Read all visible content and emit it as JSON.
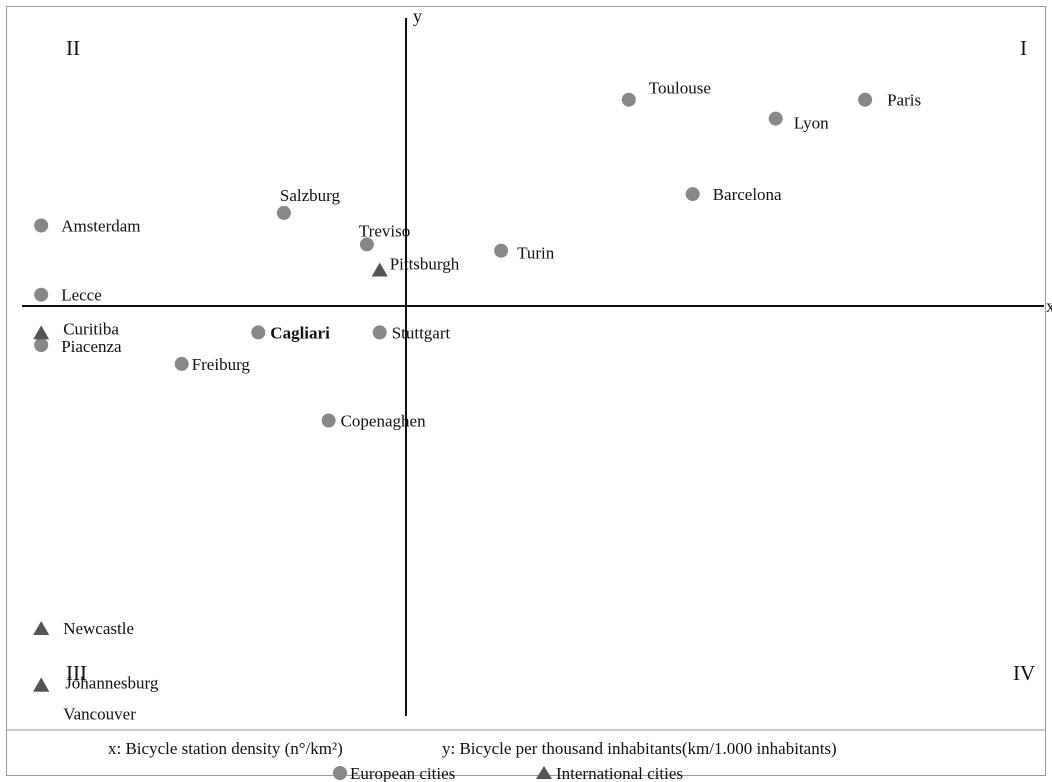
{
  "chart_data": {
    "type": "scatter",
    "title": "",
    "axes": {
      "x_letter": "x",
      "y_letter": "y"
    },
    "quadrants": {
      "I": "I",
      "II": "II",
      "III": "III",
      "IV": "IV"
    },
    "xlim": [
      -4.5,
      11.5
    ],
    "ylim": [
      -6.3,
      4.8
    ],
    "caption": {
      "x_desc": "x: Bicycle station density (n°/km²)",
      "y_desc": "y: Bicycle per thousand inhabitants(km/1.000 inhabitants)"
    },
    "series": [
      {
        "name": "European cities",
        "marker": "circle",
        "color": "#888888",
        "points": [
          {
            "label": "Toulouse",
            "x": 5.0,
            "y": 3.5
          },
          {
            "label": "Paris",
            "x": 8.7,
            "y": 3.5
          },
          {
            "label": "Lyon",
            "x": 7.3,
            "y": 3.2
          },
          {
            "label": "Barcelona",
            "x": 6.0,
            "y": 2.0
          },
          {
            "label": "Salzburg",
            "x": -0.4,
            "y": 1.7
          },
          {
            "label": "Amsterdam",
            "x": -4.2,
            "y": 1.5
          },
          {
            "label": "Treviso",
            "x": 0.9,
            "y": 1.2
          },
          {
            "label": "Turin",
            "x": 3.0,
            "y": 1.1
          },
          {
            "label": "Lecce",
            "x": -4.2,
            "y": 0.4
          },
          {
            "label": "Cagliari",
            "x": -0.8,
            "y": -0.2,
            "bold": true
          },
          {
            "label": "Stuttgart",
            "x": 1.1,
            "y": -0.2
          },
          {
            "label": "Piacenza",
            "x": -4.2,
            "y": -0.4
          },
          {
            "label": "Freiburg",
            "x": -2.0,
            "y": -0.7
          },
          {
            "label": "Copenaghen",
            "x": 0.3,
            "y": -1.6
          }
        ]
      },
      {
        "name": "International cities",
        "marker": "triangle",
        "color": "#555555",
        "points": [
          {
            "label": "Pittsburgh",
            "x": 1.1,
            "y": 0.8
          },
          {
            "label": "Curitiba",
            "x": -4.2,
            "y": -0.2
          },
          {
            "label": "Newcastle",
            "x": -4.2,
            "y": -4.9
          },
          {
            "label": "Johannesburg",
            "x": -4.2,
            "y": -5.8
          },
          {
            "label": "Vancouver",
            "x": -4.2,
            "y": -5.8
          }
        ]
      }
    ],
    "legend": {
      "placement": "bottom"
    }
  }
}
